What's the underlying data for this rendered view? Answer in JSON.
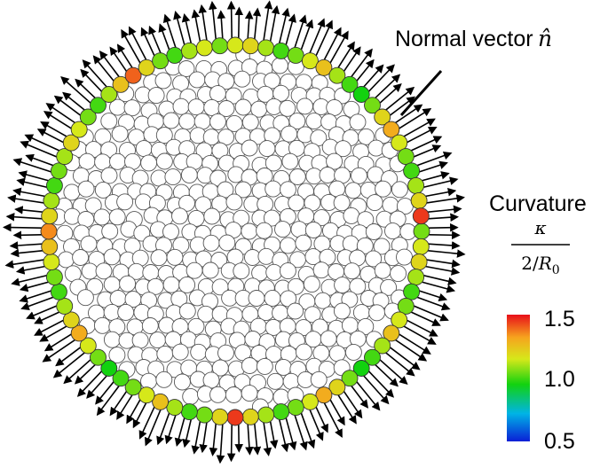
{
  "annotation": {
    "text": "Normal vector",
    "symbol": "n̂"
  },
  "colorbar": {
    "title": "Curvature",
    "numerator": "κ",
    "denominator_prefix": "2/",
    "denominator_var": "R",
    "denominator_sub": "0",
    "ticks": [
      "1.5",
      "1.0",
      "0.5"
    ],
    "range": [
      0.5,
      1.5
    ],
    "colors": [
      "#0a1fd6",
      "#00b4e6",
      "#12d20f",
      "#d6e81a",
      "#f6a41e",
      "#e8101a"
    ]
  },
  "particles": {
    "interior_fill": "#ffffff",
    "interior_stroke": "#555555",
    "boundary_curvature_samples": [
      1.05,
      1.15,
      1.2,
      1.1,
      1.0,
      1.05,
      1.15,
      1.25,
      1.1,
      1.0,
      0.95,
      1.05,
      1.2,
      1.3,
      1.15,
      1.05,
      1.0,
      1.1,
      1.2,
      1.45,
      1.2,
      1.05,
      1.0,
      1.1,
      1.25,
      1.15,
      1.05,
      1.0,
      0.95,
      1.05,
      1.15,
      1.3,
      1.2,
      1.1,
      1.0,
      1.05,
      1.15,
      1.25,
      1.35,
      1.2,
      1.1,
      1.0,
      1.05,
      1.1,
      1.2,
      1.15,
      1.05,
      1.0,
      1.1,
      1.25,
      1.4,
      1.2,
      1.05,
      1.0,
      1.1,
      1.15
    ]
  }
}
